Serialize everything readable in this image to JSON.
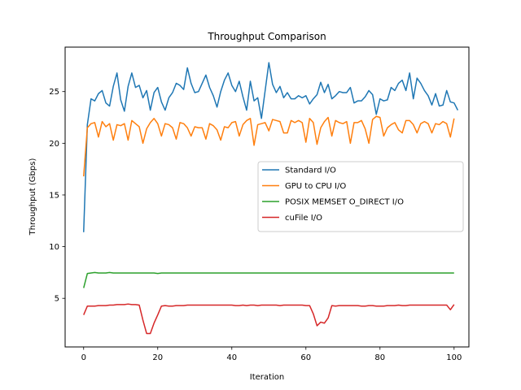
{
  "chart_data": {
    "type": "line",
    "title": "Throughput Comparison",
    "xlabel": "Iteration",
    "ylabel": "Throughput (Gbps)",
    "xlim": [
      -5,
      104
    ],
    "ylim": [
      0.3,
      29.3
    ],
    "xticks": [
      0,
      20,
      40,
      60,
      80,
      100
    ],
    "yticks": [
      5,
      10,
      15,
      20,
      25
    ],
    "grid": false,
    "legend_position": "center-right",
    "series": [
      {
        "name": "Standard I/O",
        "color": "#1f77b4",
        "values": [
          11.4,
          21.8,
          24.3,
          24.1,
          24.8,
          25.1,
          23.9,
          23.6,
          25.5,
          26.8,
          24.2,
          23.1,
          25.5,
          26.8,
          25.4,
          25.6,
          24.4,
          25.1,
          23.2,
          24.9,
          25.4,
          24.0,
          23.2,
          24.4,
          24.9,
          25.8,
          25.6,
          25.2,
          27.3,
          25.8,
          24.9,
          25.0,
          25.8,
          26.6,
          25.4,
          24.6,
          23.5,
          25.0,
          26.1,
          26.8,
          25.6,
          25.0,
          26.0,
          24.5,
          23.2,
          26.0,
          24.1,
          24.4,
          22.4,
          25.1,
          27.8,
          25.7,
          24.9,
          25.5,
          24.4,
          24.9,
          24.3,
          24.3,
          24.6,
          24.4,
          24.6,
          23.8,
          24.3,
          24.7,
          25.9,
          24.9,
          25.7,
          24.3,
          24.6,
          25.0,
          24.9,
          24.9,
          25.4,
          23.9,
          24.1,
          24.1,
          24.5,
          25.1,
          24.7,
          22.8,
          24.3,
          24.1,
          24.2,
          25.4,
          25.1,
          25.8,
          26.1,
          25.1,
          26.8,
          24.3,
          26.3,
          25.8,
          25.1,
          24.6,
          23.7,
          24.8,
          23.6,
          23.7,
          25.1,
          24.0,
          23.9,
          23.2
        ]
      },
      {
        "name": "GPU to CPU I/O",
        "color": "#ff7f0e",
        "values": [
          16.8,
          21.5,
          21.9,
          22.0,
          20.6,
          22.1,
          21.6,
          21.9,
          20.3,
          21.8,
          21.7,
          21.9,
          20.3,
          22.2,
          21.9,
          21.6,
          20.0,
          21.4,
          22.0,
          22.4,
          21.9,
          20.7,
          21.9,
          21.8,
          21.5,
          20.4,
          22.0,
          21.9,
          21.5,
          20.7,
          21.6,
          21.5,
          21.5,
          20.4,
          21.9,
          21.7,
          21.3,
          20.3,
          21.6,
          21.5,
          22.0,
          22.1,
          20.7,
          21.8,
          22.2,
          22.4,
          19.8,
          21.8,
          21.9,
          22.0,
          21.2,
          22.3,
          22.2,
          22.1,
          21.0,
          21.0,
          22.2,
          22.0,
          22.2,
          22.0,
          20.1,
          22.4,
          22.0,
          19.9,
          21.5,
          22.1,
          22.5,
          20.7,
          22.2,
          22.0,
          21.9,
          22.1,
          20.0,
          22.0,
          22.0,
          22.2,
          21.4,
          20.0,
          22.3,
          22.6,
          22.5,
          20.7,
          21.5,
          21.8,
          22.0,
          21.3,
          21.0,
          22.2,
          22.2,
          21.8,
          21.0,
          21.9,
          22.1,
          21.9,
          21.0,
          21.9,
          21.8,
          22.1,
          21.9,
          20.6,
          22.4
        ]
      },
      {
        "name": "POSIX MEMSET O_DIRECT I/O",
        "color": "#2ca02c",
        "values": [
          6.0,
          7.4,
          7.45,
          7.5,
          7.45,
          7.45,
          7.45,
          7.5,
          7.45,
          7.45,
          7.45,
          7.45,
          7.45,
          7.45,
          7.45,
          7.45,
          7.45,
          7.45,
          7.45,
          7.45,
          7.4,
          7.45,
          7.45,
          7.45,
          7.45,
          7.45,
          7.45,
          7.45,
          7.45,
          7.45,
          7.45,
          7.45,
          7.45,
          7.45,
          7.45,
          7.45,
          7.45,
          7.45,
          7.45,
          7.45,
          7.45,
          7.45,
          7.45,
          7.45,
          7.45,
          7.45,
          7.45,
          7.45,
          7.45,
          7.45,
          7.45,
          7.45,
          7.45,
          7.45,
          7.45,
          7.45,
          7.45,
          7.45,
          7.45,
          7.45,
          7.45,
          7.45,
          7.45,
          7.45,
          7.45,
          7.45,
          7.45,
          7.45,
          7.45,
          7.45,
          7.45,
          7.45,
          7.45,
          7.45,
          7.45,
          7.45,
          7.45,
          7.45,
          7.45,
          7.45,
          7.45,
          7.45,
          7.45,
          7.45,
          7.45,
          7.45,
          7.45,
          7.45,
          7.45,
          7.45,
          7.45,
          7.45,
          7.45,
          7.45,
          7.45,
          7.45,
          7.45,
          7.45,
          7.45,
          7.45,
          7.45
        ]
      },
      {
        "name": "cuFile I/O",
        "color": "#d62728",
        "values": [
          3.4,
          4.25,
          4.25,
          4.25,
          4.3,
          4.3,
          4.3,
          4.35,
          4.35,
          4.4,
          4.4,
          4.4,
          4.45,
          4.4,
          4.4,
          4.35,
          2.9,
          1.6,
          1.6,
          2.6,
          3.4,
          4.25,
          4.3,
          4.25,
          4.25,
          4.3,
          4.3,
          4.3,
          4.35,
          4.35,
          4.35,
          4.35,
          4.35,
          4.35,
          4.35,
          4.35,
          4.35,
          4.35,
          4.35,
          4.35,
          4.35,
          4.3,
          4.3,
          4.35,
          4.3,
          4.35,
          4.35,
          4.3,
          4.35,
          4.35,
          4.35,
          4.35,
          4.35,
          4.3,
          4.35,
          4.35,
          4.35,
          4.35,
          4.35,
          4.35,
          4.3,
          4.3,
          3.5,
          2.35,
          2.7,
          2.6,
          3.1,
          4.3,
          4.25,
          4.3,
          4.3,
          4.3,
          4.3,
          4.3,
          4.3,
          4.25,
          4.25,
          4.3,
          4.3,
          4.25,
          4.25,
          4.25,
          4.3,
          4.3,
          4.3,
          4.35,
          4.3,
          4.3,
          4.35,
          4.35,
          4.35,
          4.35,
          4.35,
          4.35,
          4.35,
          4.35,
          4.35,
          4.35,
          4.35,
          3.9,
          4.4
        ]
      }
    ]
  }
}
